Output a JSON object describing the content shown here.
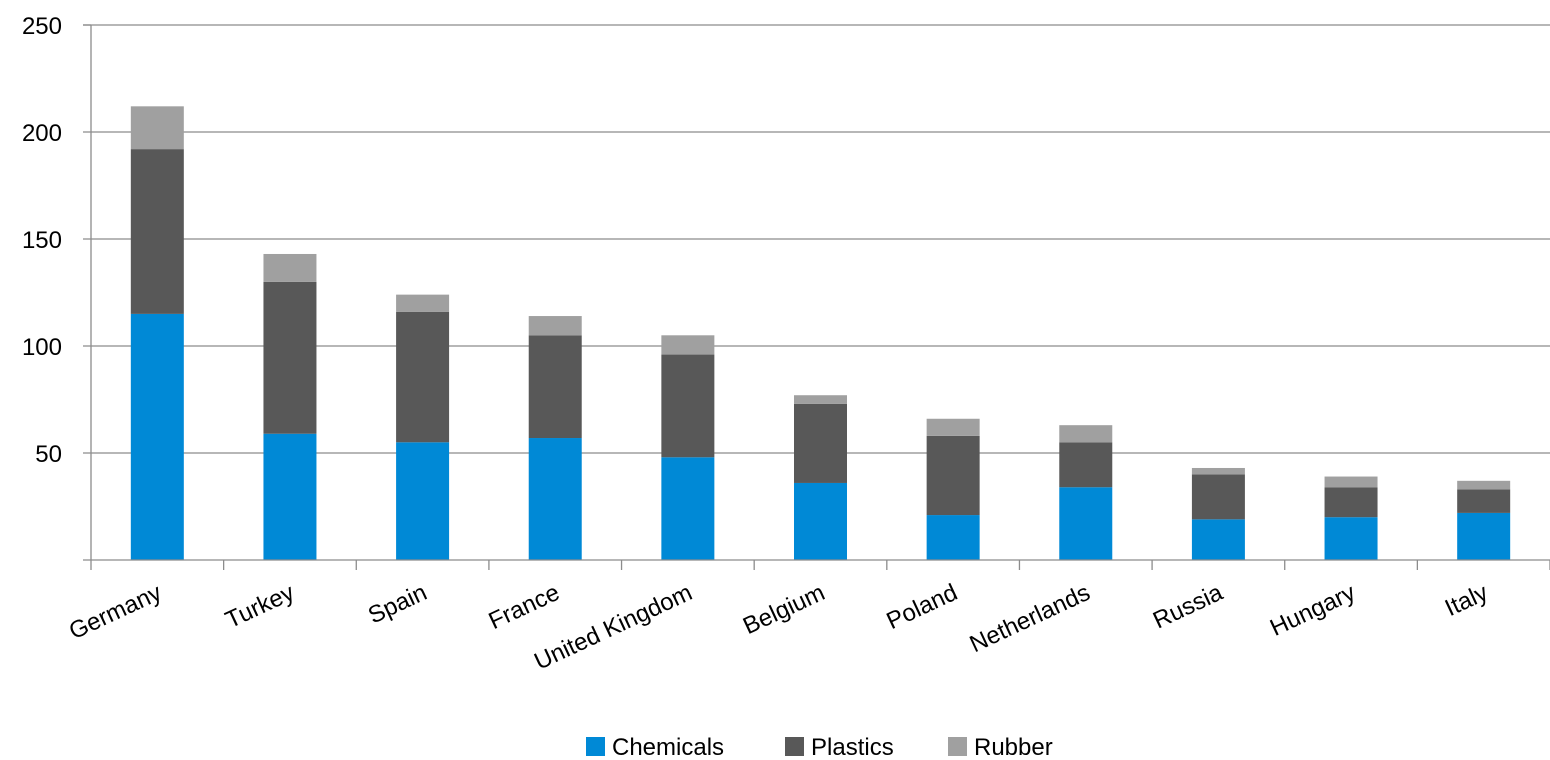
{
  "chart_data": {
    "type": "bar",
    "stacked": true,
    "title": "",
    "xlabel": "",
    "ylabel": "",
    "categories": [
      "Germany",
      "Turkey",
      "Spain",
      "France",
      "United Kingdom",
      "Belgium",
      "Poland",
      "Netherlands",
      "Russia",
      "Hungary",
      "Italy"
    ],
    "series": [
      {
        "name": "Chemicals",
        "color": "#0089D6",
        "values": [
          115,
          59,
          55,
          57,
          48,
          36,
          21,
          34,
          19,
          20,
          22
        ]
      },
      {
        "name": "Plastics",
        "color": "#585858",
        "values": [
          77,
          71,
          61,
          48,
          48,
          37,
          37,
          21,
          21,
          14,
          11
        ]
      },
      {
        "name": "Rubber",
        "color": "#A0A0A0",
        "values": [
          20,
          13,
          8,
          9,
          9,
          4,
          8,
          8,
          3,
          5,
          4
        ]
      }
    ],
    "ylim": [
      0,
      250
    ],
    "yticks": [
      50,
      100,
      150,
      200,
      250
    ],
    "grid": true,
    "legend_position": "bottom-center"
  }
}
